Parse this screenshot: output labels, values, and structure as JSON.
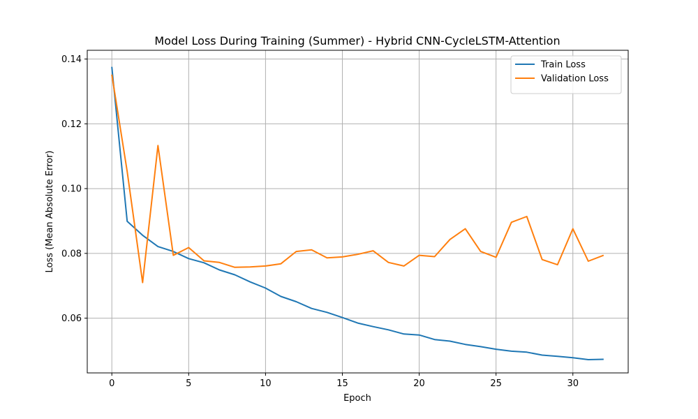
{
  "chart_data": {
    "type": "line",
    "title": "Model Loss During Training (Summer) - Hybrid CNN-CycleLSTM-Attention",
    "xlabel": "Epoch",
    "ylabel": "Loss (Mean Absolute Error)",
    "xlim": [
      -1.6,
      33.6
    ],
    "ylim": [
      0.0431,
      0.1427
    ],
    "xticks": [
      0,
      5,
      10,
      15,
      20,
      25,
      30
    ],
    "yticks": [
      0.06,
      0.08,
      0.1,
      0.12,
      0.14
    ],
    "ytick_labels": [
      "0.06",
      "0.08",
      "0.10",
      "0.12",
      "0.14"
    ],
    "grid": true,
    "legend_position": "top-right",
    "x": [
      0,
      1,
      2,
      3,
      4,
      5,
      6,
      7,
      8,
      9,
      10,
      11,
      12,
      13,
      14,
      15,
      16,
      17,
      18,
      19,
      20,
      21,
      22,
      23,
      24,
      25,
      26,
      27,
      28,
      29,
      30,
      31,
      32
    ],
    "series": [
      {
        "name": "Train Loss",
        "color": "#1f77b4",
        "values": [
          0.1376,
          0.0899,
          0.0856,
          0.0821,
          0.0806,
          0.0784,
          0.0771,
          0.0749,
          0.0734,
          0.0712,
          0.0693,
          0.0667,
          0.0651,
          0.063,
          0.0618,
          0.0602,
          0.0585,
          0.0574,
          0.0564,
          0.0551,
          0.0548,
          0.0534,
          0.0529,
          0.0519,
          0.0512,
          0.0504,
          0.0498,
          0.0495,
          0.0486,
          0.0482,
          0.0478,
          0.0472,
          0.0473
        ]
      },
      {
        "name": "Validation Loss",
        "color": "#ff7f0e",
        "values": [
          0.1352,
          0.1053,
          0.071,
          0.1133,
          0.0794,
          0.0818,
          0.0777,
          0.0772,
          0.0757,
          0.0758,
          0.0761,
          0.0768,
          0.0806,
          0.0811,
          0.0786,
          0.0789,
          0.0797,
          0.0808,
          0.0772,
          0.0761,
          0.0794,
          0.079,
          0.0843,
          0.0876,
          0.0806,
          0.0788,
          0.0896,
          0.0914,
          0.0781,
          0.0765,
          0.0876,
          0.0776,
          0.0794
        ]
      }
    ]
  }
}
